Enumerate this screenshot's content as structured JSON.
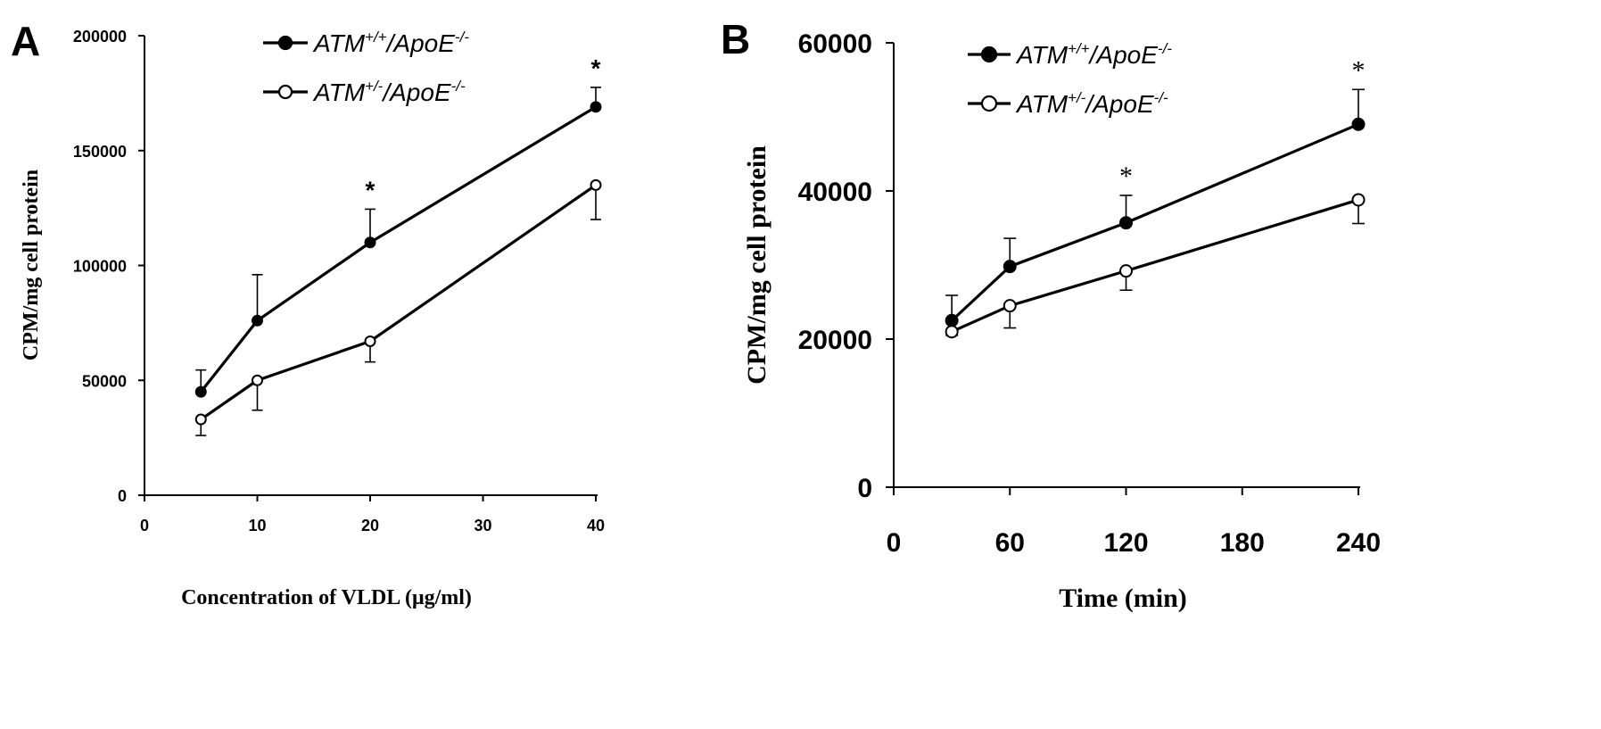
{
  "panels": [
    {
      "letter": "A",
      "legend": [
        {
          "pre": "ATM",
          "sup1": "+/+",
          "mid": "/ApoE",
          "sup2": "-/-",
          "marker": "filled"
        },
        {
          "pre": "ATM",
          "sup1": "+/-",
          "mid": "/ApoE",
          "sup2": "-/-",
          "marker": "open"
        }
      ]
    },
    {
      "letter": "B",
      "legend": [
        {
          "pre": "ATM",
          "sup1": "+/+",
          "mid": "/ApoE",
          "sup2": "-/-",
          "marker": "filled"
        },
        {
          "pre": "ATM",
          "sup1": "+/-",
          "mid": "/ApoE",
          "sup2": "-/-",
          "marker": "open"
        }
      ]
    }
  ],
  "chart_data": [
    {
      "type": "line",
      "panel": "A",
      "xlabel": "Concentration of VLDL (μg/ml)",
      "ylabel": "CPM/mg cell protein",
      "xlim": [
        0,
        40
      ],
      "ylim": [
        0,
        200000
      ],
      "xticks": [
        0,
        10,
        20,
        30,
        40
      ],
      "yticks": [
        0,
        50000,
        100000,
        150000,
        200000
      ],
      "x": [
        5,
        10,
        20,
        40
      ],
      "series": [
        {
          "name": "ATM+/+/ApoE-/-",
          "marker": "filled",
          "values": [
            45000,
            76000,
            110000,
            169000
          ],
          "error_plus": [
            9500,
            20000,
            14500,
            8500
          ]
        },
        {
          "name": "ATM+/-/ApoE-/-",
          "marker": "open",
          "values": [
            33000,
            50000,
            67000,
            135000
          ],
          "error_minus": [
            7000,
            13000,
            9000,
            15000
          ]
        }
      ],
      "significance": [
        {
          "x": 20,
          "label": "*"
        },
        {
          "x": 40,
          "label": "*"
        }
      ],
      "grid": false
    },
    {
      "type": "line",
      "panel": "B",
      "xlabel": "Time (min)",
      "ylabel": "CPM/mg cell protein",
      "xlim": [
        0,
        240
      ],
      "ylim": [
        0,
        60000
      ],
      "xticks": [
        0,
        60,
        120,
        180,
        240
      ],
      "yticks": [
        0,
        20000,
        40000,
        60000
      ],
      "x": [
        30,
        60,
        120,
        240
      ],
      "series": [
        {
          "name": "ATM+/+/ApoE-/-",
          "marker": "filled",
          "values": [
            22500,
            29800,
            35700,
            49000
          ],
          "error_plus": [
            3400,
            3800,
            3700,
            4700
          ]
        },
        {
          "name": "ATM+/-/ApoE-/-",
          "marker": "open",
          "values": [
            21000,
            24500,
            29200,
            38800
          ],
          "error_minus": [
            500,
            3000,
            2600,
            3200
          ]
        }
      ],
      "significance": [
        {
          "x": 120,
          "label": "*"
        },
        {
          "x": 240,
          "label": "*"
        }
      ],
      "grid": false
    }
  ]
}
